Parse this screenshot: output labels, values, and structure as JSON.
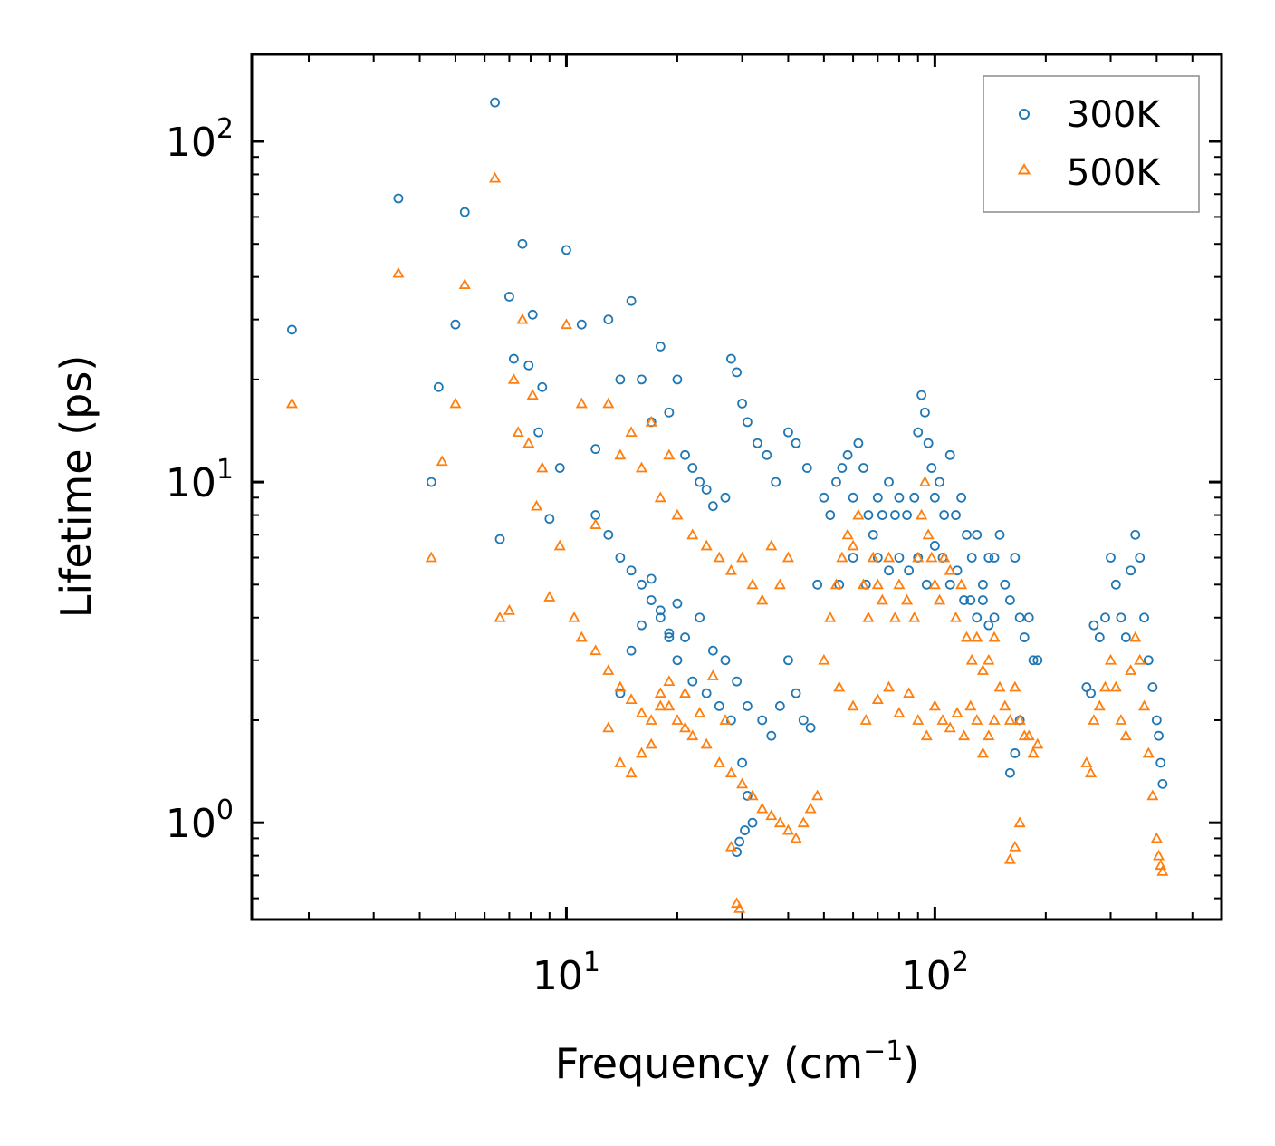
{
  "chart_data": {
    "type": "scatter",
    "title": "",
    "xlabel": "Frequency (cm",
    "xlabel_sup": "−1",
    "xlabel_suffix": ")",
    "ylabel": "Lifetime (ps)",
    "xscale": "log",
    "yscale": "log",
    "xlim": [
      1.4,
      600
    ],
    "ylim": [
      0.52,
      180
    ],
    "x_tick_labels": [
      {
        "value": 10,
        "base": "10",
        "exp": "1"
      },
      {
        "value": 100,
        "base": "10",
        "exp": "2"
      }
    ],
    "y_tick_labels": [
      {
        "value": 1,
        "base": "10",
        "exp": "0"
      },
      {
        "value": 10,
        "base": "10",
        "exp": "1"
      },
      {
        "value": 100,
        "base": "10",
        "exp": "2"
      }
    ],
    "legend_position": "top-right",
    "grid": false,
    "series": [
      {
        "name": "300K",
        "marker": "circle-open",
        "color": "#1f77b4",
        "points": [
          [
            1.8,
            28
          ],
          [
            3.5,
            68
          ],
          [
            4.3,
            10
          ],
          [
            4.5,
            19
          ],
          [
            5.0,
            29
          ],
          [
            5.3,
            62
          ],
          [
            6.4,
            130
          ],
          [
            6.6,
            6.8
          ],
          [
            7.0,
            35
          ],
          [
            7.2,
            23
          ],
          [
            7.6,
            50
          ],
          [
            7.9,
            22
          ],
          [
            8.1,
            31
          ],
          [
            8.4,
            14
          ],
          [
            8.6,
            19
          ],
          [
            9.0,
            7.8
          ],
          [
            9.6,
            11
          ],
          [
            10,
            48
          ],
          [
            11,
            29
          ],
          [
            12,
            12.5
          ],
          [
            13,
            30
          ],
          [
            14,
            20
          ],
          [
            15,
            34
          ],
          [
            16,
            20
          ],
          [
            17,
            15
          ],
          [
            18,
            25
          ],
          [
            19,
            16
          ],
          [
            20,
            20
          ],
          [
            21,
            12
          ],
          [
            22,
            11
          ],
          [
            23,
            10
          ],
          [
            24,
            9.5
          ],
          [
            25,
            8.5
          ],
          [
            27,
            9
          ],
          [
            28,
            23
          ],
          [
            29,
            21
          ],
          [
            30,
            17
          ],
          [
            31,
            15
          ],
          [
            33,
            13
          ],
          [
            35,
            12
          ],
          [
            37,
            10
          ],
          [
            40,
            14
          ],
          [
            42,
            13
          ],
          [
            45,
            11
          ],
          [
            12,
            8
          ],
          [
            13,
            7
          ],
          [
            14,
            6
          ],
          [
            15,
            5.5
          ],
          [
            16,
            5
          ],
          [
            17,
            4.5
          ],
          [
            18,
            4
          ],
          [
            19,
            3.5
          ],
          [
            20,
            3
          ],
          [
            22,
            2.6
          ],
          [
            24,
            2.4
          ],
          [
            26,
            2.2
          ],
          [
            28,
            2
          ],
          [
            30,
            1.5
          ],
          [
            31,
            1.2
          ],
          [
            32,
            1.0
          ],
          [
            29,
            0.82
          ],
          [
            29.5,
            0.88
          ],
          [
            30.5,
            0.95
          ],
          [
            14,
            2.4
          ],
          [
            15,
            3.2
          ],
          [
            16,
            3.8
          ],
          [
            17,
            5.2
          ],
          [
            18,
            4.2
          ],
          [
            19,
            3.6
          ],
          [
            20,
            4.4
          ],
          [
            21,
            3.5
          ],
          [
            23,
            4
          ],
          [
            25,
            3.2
          ],
          [
            27,
            3
          ],
          [
            29,
            2.6
          ],
          [
            31,
            2.2
          ],
          [
            34,
            2
          ],
          [
            36,
            1.8
          ],
          [
            38,
            2.2
          ],
          [
            40,
            3
          ],
          [
            42,
            2.4
          ],
          [
            44,
            2
          ],
          [
            46,
            1.9
          ],
          [
            48,
            5
          ],
          [
            50,
            9
          ],
          [
            52,
            8
          ],
          [
            54,
            10
          ],
          [
            56,
            11
          ],
          [
            58,
            12
          ],
          [
            60,
            9
          ],
          [
            62,
            13
          ],
          [
            64,
            11
          ],
          [
            66,
            8
          ],
          [
            68,
            7
          ],
          [
            70,
            9
          ],
          [
            72,
            8
          ],
          [
            75,
            10
          ],
          [
            78,
            8
          ],
          [
            80,
            9
          ],
          [
            84,
            8
          ],
          [
            88,
            9
          ],
          [
            90,
            14
          ],
          [
            92,
            18
          ],
          [
            94,
            16
          ],
          [
            96,
            13
          ],
          [
            98,
            11
          ],
          [
            100,
            9
          ],
          [
            103,
            10
          ],
          [
            106,
            8
          ],
          [
            110,
            12
          ],
          [
            114,
            8
          ],
          [
            118,
            9
          ],
          [
            122,
            7
          ],
          [
            126,
            6
          ],
          [
            130,
            7
          ],
          [
            135,
            5
          ],
          [
            140,
            6
          ],
          [
            145,
            6
          ],
          [
            150,
            7
          ],
          [
            155,
            5
          ],
          [
            160,
            4.5
          ],
          [
            165,
            6
          ],
          [
            170,
            4
          ],
          [
            175,
            3.5
          ],
          [
            180,
            4
          ],
          [
            185,
            3
          ],
          [
            190,
            3
          ],
          [
            160,
            1.4
          ],
          [
            165,
            1.6
          ],
          [
            170,
            2
          ],
          [
            258,
            2.5
          ],
          [
            265,
            2.4
          ],
          [
            270,
            3.8
          ],
          [
            280,
            3.5
          ],
          [
            290,
            4
          ],
          [
            300,
            6
          ],
          [
            310,
            5
          ],
          [
            320,
            4
          ],
          [
            330,
            3.5
          ],
          [
            340,
            5.5
          ],
          [
            350,
            7
          ],
          [
            360,
            6
          ],
          [
            370,
            4
          ],
          [
            380,
            3
          ],
          [
            390,
            2.5
          ],
          [
            400,
            2
          ],
          [
            405,
            1.8
          ],
          [
            410,
            1.5
          ],
          [
            415,
            1.3
          ],
          [
            55,
            5
          ],
          [
            60,
            6
          ],
          [
            65,
            5
          ],
          [
            70,
            6
          ],
          [
            75,
            5.5
          ],
          [
            80,
            6
          ],
          [
            85,
            5.5
          ],
          [
            90,
            6
          ],
          [
            95,
            5
          ],
          [
            100,
            6.5
          ],
          [
            105,
            6
          ],
          [
            110,
            5
          ],
          [
            115,
            5.5
          ],
          [
            120,
            4.5
          ],
          [
            125,
            4.5
          ],
          [
            130,
            4
          ],
          [
            135,
            4.5
          ],
          [
            140,
            3.8
          ],
          [
            145,
            4
          ]
        ]
      },
      {
        "name": "500K",
        "marker": "triangle-open",
        "color": "#ff7f0e",
        "points": [
          [
            1.8,
            17
          ],
          [
            3.5,
            41
          ],
          [
            4.3,
            6
          ],
          [
            4.6,
            11.5
          ],
          [
            5.0,
            17
          ],
          [
            5.3,
            38
          ],
          [
            6.4,
            78
          ],
          [
            6.6,
            4
          ],
          [
            7.0,
            4.2
          ],
          [
            7.2,
            20
          ],
          [
            7.4,
            14
          ],
          [
            7.6,
            30
          ],
          [
            7.9,
            13
          ],
          [
            8.1,
            18
          ],
          [
            8.3,
            8.5
          ],
          [
            8.6,
            11
          ],
          [
            9.0,
            4.6
          ],
          [
            9.6,
            6.5
          ],
          [
            10,
            29
          ],
          [
            11,
            17
          ],
          [
            12,
            7.5
          ],
          [
            13,
            17
          ],
          [
            14,
            12
          ],
          [
            15,
            14
          ],
          [
            16,
            11
          ],
          [
            17,
            15
          ],
          [
            18,
            9
          ],
          [
            19,
            12
          ],
          [
            20,
            8
          ],
          [
            22,
            7
          ],
          [
            24,
            6.5
          ],
          [
            26,
            6
          ],
          [
            28,
            5.5
          ],
          [
            30,
            6
          ],
          [
            32,
            5
          ],
          [
            34,
            4.5
          ],
          [
            36,
            6.5
          ],
          [
            38,
            5
          ],
          [
            40,
            6
          ],
          [
            10.5,
            4
          ],
          [
            11,
            3.5
          ],
          [
            12,
            3.2
          ],
          [
            13,
            2.8
          ],
          [
            14,
            2.5
          ],
          [
            15,
            2.3
          ],
          [
            16,
            2.1
          ],
          [
            17,
            2
          ],
          [
            18,
            2.4
          ],
          [
            19,
            2.2
          ],
          [
            20,
            2
          ],
          [
            21,
            1.9
          ],
          [
            22,
            1.8
          ],
          [
            24,
            1.7
          ],
          [
            26,
            1.5
          ],
          [
            28,
            1.4
          ],
          [
            30,
            1.3
          ],
          [
            32,
            1.2
          ],
          [
            34,
            1.1
          ],
          [
            36,
            1.05
          ],
          [
            38,
            1.0
          ],
          [
            40,
            0.95
          ],
          [
            42,
            0.9
          ],
          [
            44,
            1.0
          ],
          [
            46,
            1.1
          ],
          [
            48,
            1.2
          ],
          [
            29,
            0.58
          ],
          [
            29.5,
            0.56
          ],
          [
            28,
            0.85
          ],
          [
            13,
            1.9
          ],
          [
            14,
            1.5
          ],
          [
            15,
            1.4
          ],
          [
            16,
            1.6
          ],
          [
            17,
            1.7
          ],
          [
            18,
            2.2
          ],
          [
            19,
            2.6
          ],
          [
            21,
            2.4
          ],
          [
            23,
            2.1
          ],
          [
            25,
            2.7
          ],
          [
            27,
            2
          ],
          [
            50,
            3
          ],
          [
            52,
            4
          ],
          [
            54,
            5
          ],
          [
            56,
            6
          ],
          [
            58,
            7
          ],
          [
            60,
            6.5
          ],
          [
            62,
            8
          ],
          [
            64,
            5
          ],
          [
            66,
            4
          ],
          [
            68,
            6
          ],
          [
            70,
            5
          ],
          [
            72,
            4.5
          ],
          [
            75,
            6
          ],
          [
            78,
            4
          ],
          [
            80,
            5
          ],
          [
            84,
            4.5
          ],
          [
            88,
            4
          ],
          [
            90,
            6
          ],
          [
            92,
            8
          ],
          [
            94,
            10
          ],
          [
            96,
            7
          ],
          [
            98,
            6
          ],
          [
            100,
            5
          ],
          [
            103,
            4.5
          ],
          [
            106,
            6
          ],
          [
            110,
            5.5
          ],
          [
            114,
            4
          ],
          [
            118,
            5
          ],
          [
            122,
            3.5
          ],
          [
            126,
            3
          ],
          [
            130,
            3.5
          ],
          [
            135,
            2.8
          ],
          [
            140,
            3
          ],
          [
            145,
            3.5
          ],
          [
            150,
            2.5
          ],
          [
            155,
            2.2
          ],
          [
            160,
            2
          ],
          [
            165,
            2.5
          ],
          [
            170,
            2
          ],
          [
            175,
            1.8
          ],
          [
            180,
            1.8
          ],
          [
            185,
            1.6
          ],
          [
            190,
            1.7
          ],
          [
            160,
            0.78
          ],
          [
            165,
            0.85
          ],
          [
            170,
            1.0
          ],
          [
            258,
            1.5
          ],
          [
            265,
            1.4
          ],
          [
            270,
            2
          ],
          [
            280,
            2.2
          ],
          [
            290,
            2.5
          ],
          [
            300,
            3
          ],
          [
            310,
            2.5
          ],
          [
            320,
            2
          ],
          [
            330,
            1.8
          ],
          [
            340,
            2.8
          ],
          [
            350,
            3.5
          ],
          [
            360,
            3
          ],
          [
            370,
            2.2
          ],
          [
            380,
            1.6
          ],
          [
            390,
            1.2
          ],
          [
            400,
            0.9
          ],
          [
            405,
            0.8
          ],
          [
            410,
            0.75
          ],
          [
            415,
            0.72
          ],
          [
            55,
            2.5
          ],
          [
            60,
            2.2
          ],
          [
            65,
            2
          ],
          [
            70,
            2.3
          ],
          [
            75,
            2.5
          ],
          [
            80,
            2.1
          ],
          [
            85,
            2.4
          ],
          [
            90,
            2
          ],
          [
            95,
            1.8
          ],
          [
            100,
            2.2
          ],
          [
            105,
            2
          ],
          [
            110,
            1.9
          ],
          [
            115,
            2.1
          ],
          [
            120,
            1.8
          ],
          [
            125,
            2.2
          ],
          [
            130,
            2
          ],
          [
            135,
            1.6
          ],
          [
            140,
            1.8
          ],
          [
            145,
            2
          ]
        ]
      }
    ]
  }
}
